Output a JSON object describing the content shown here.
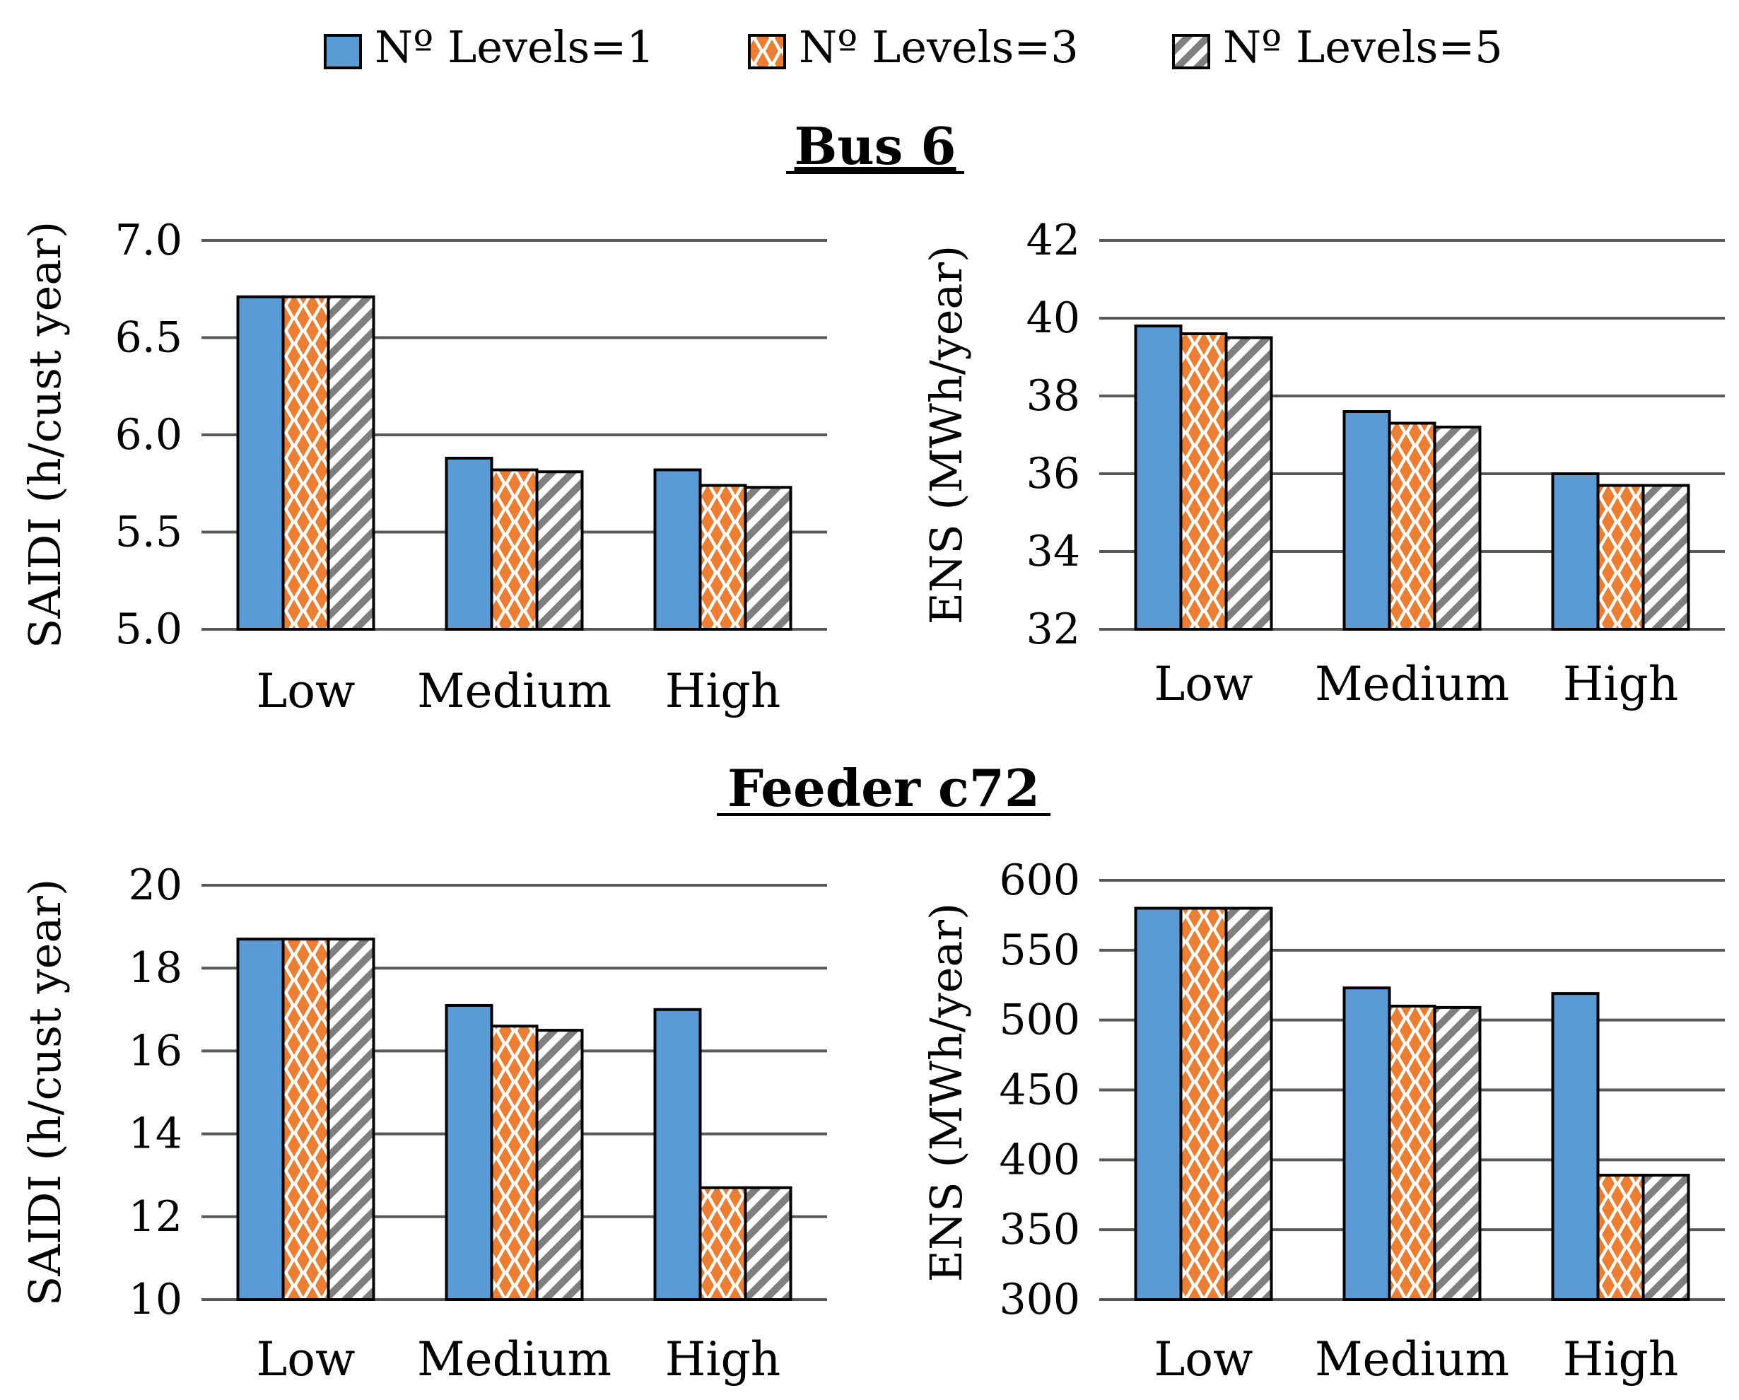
{
  "legend": [
    {
      "label": "Nº Levels=1",
      "pattern": "solid"
    },
    {
      "label": "Nº Levels=3",
      "pattern": "diamonds"
    },
    {
      "label": "Nº Levels=5",
      "pattern": "stripes"
    }
  ],
  "colors": {
    "series1": "#5b9bd5",
    "series2": "#ed7d31",
    "series3": "#7f7f7f",
    "grid": "#595959"
  },
  "sections": [
    {
      "title": "Bus 6"
    },
    {
      "title": "Feeder c72"
    }
  ],
  "chart_data": [
    {
      "type": "bar",
      "section": "Bus 6",
      "categories": [
        "Low",
        "Medium",
        "High"
      ],
      "ylabel": "SAIDI (h/cust year)",
      "ylim": [
        5.0,
        7.0
      ],
      "yticks": [
        "5.0",
        "5.5",
        "6.0",
        "6.5",
        "7.0"
      ],
      "ytick_values": [
        5.0,
        5.5,
        6.0,
        6.5,
        7.0
      ],
      "series": [
        {
          "name": "Nº Levels=1",
          "values": [
            6.71,
            5.88,
            5.82
          ]
        },
        {
          "name": "Nº Levels=3",
          "values": [
            6.71,
            5.82,
            5.74
          ]
        },
        {
          "name": "Nº Levels=5",
          "values": [
            6.71,
            5.81,
            5.73
          ]
        }
      ]
    },
    {
      "type": "bar",
      "section": "Bus 6",
      "categories": [
        "Low",
        "Medium",
        "High"
      ],
      "ylabel": "ENS (MWh/year)",
      "ylim": [
        32,
        42
      ],
      "yticks": [
        "32",
        "34",
        "36",
        "38",
        "40",
        "42"
      ],
      "ytick_values": [
        32,
        34,
        36,
        38,
        40,
        42
      ],
      "series": [
        {
          "name": "Nº Levels=1",
          "values": [
            39.8,
            37.6,
            36.0
          ]
        },
        {
          "name": "Nº Levels=3",
          "values": [
            39.6,
            37.3,
            35.7
          ]
        },
        {
          "name": "Nº Levels=5",
          "values": [
            39.5,
            37.2,
            35.7
          ]
        }
      ]
    },
    {
      "type": "bar",
      "section": "Feeder c72",
      "categories": [
        "Low",
        "Medium",
        "High"
      ],
      "ylabel": "SAIDI (h/cust year)",
      "ylim": [
        10,
        20
      ],
      "yticks": [
        "10",
        "12",
        "14",
        "16",
        "18",
        "20"
      ],
      "ytick_values": [
        10,
        12,
        14,
        16,
        18,
        20
      ],
      "series": [
        {
          "name": "Nº Levels=1",
          "values": [
            18.7,
            17.1,
            17.0
          ]
        },
        {
          "name": "Nº Levels=3",
          "values": [
            18.7,
            16.6,
            12.7
          ]
        },
        {
          "name": "Nº Levels=5",
          "values": [
            18.7,
            16.5,
            12.7
          ]
        }
      ]
    },
    {
      "type": "bar",
      "section": "Feeder c72",
      "categories": [
        "Low",
        "Medium",
        "High"
      ],
      "ylabel": "ENS (MWh/year)",
      "ylim": [
        300,
        600
      ],
      "yticks": [
        "300",
        "350",
        "400",
        "450",
        "500",
        "550",
        "600"
      ],
      "ytick_values": [
        300,
        350,
        400,
        450,
        500,
        550,
        600
      ],
      "series": [
        {
          "name": "Nº Levels=1",
          "values": [
            580,
            523,
            519
          ]
        },
        {
          "name": "Nº Levels=3",
          "values": [
            580,
            510,
            389
          ]
        },
        {
          "name": "Nº Levels=5",
          "values": [
            580,
            509,
            389
          ]
        }
      ]
    }
  ]
}
